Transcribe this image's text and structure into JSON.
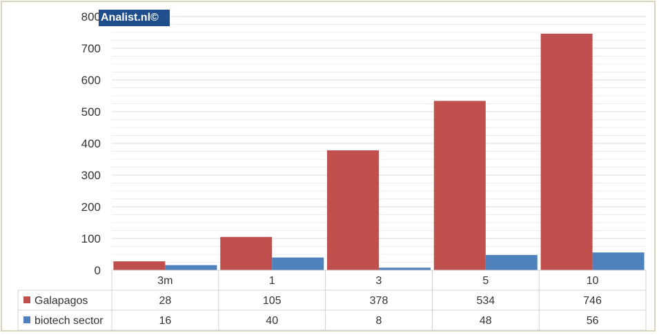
{
  "watermark": "Analist.nl©",
  "chart_data": {
    "type": "bar",
    "title": "",
    "xlabel": "",
    "ylabel": "",
    "categories": [
      "3m",
      "1",
      "3",
      "5",
      "10"
    ],
    "series": [
      {
        "name": "Galapagos",
        "color": "#c0504d",
        "values": [
          28,
          105,
          378,
          534,
          746
        ]
      },
      {
        "name": "biotech sector",
        "color": "#4f81bd",
        "values": [
          16,
          40,
          8,
          48,
          56
        ]
      }
    ],
    "ylim": [
      0,
      800
    ],
    "yticks": [
      0,
      100,
      200,
      300,
      400,
      500,
      600,
      700,
      800
    ],
    "minor_gridlines": true,
    "data_table": true,
    "legend": "in data table"
  }
}
